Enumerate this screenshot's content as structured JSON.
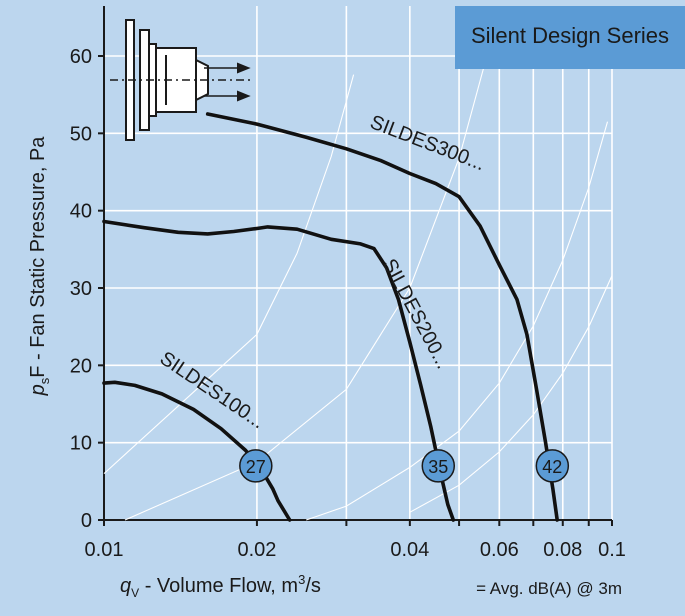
{
  "badge": "Silent Design Series",
  "chart_data": {
    "type": "line",
    "x_scale": "log",
    "xlim": [
      0.01,
      0.1
    ],
    "ylim": [
      0,
      60
    ],
    "x_ticks": [
      {
        "value": 0.01,
        "label": "0.01"
      },
      {
        "value": 0.02,
        "label": "0.02"
      },
      {
        "value": 0.04,
        "label": "0.04"
      },
      {
        "value": 0.06,
        "label": "0.06"
      },
      {
        "value": 0.08,
        "label": "0.08"
      },
      {
        "value": 0.1,
        "label": "0.1"
      }
    ],
    "x_gridlines": [
      0.01,
      0.02,
      0.03,
      0.04,
      0.05,
      0.06,
      0.07,
      0.08,
      0.09,
      0.1
    ],
    "y_ticks": [
      0,
      10,
      20,
      30,
      40,
      50,
      60
    ],
    "grid": true,
    "xlabel": {
      "symbol": "q",
      "subscript": "V",
      "rest": " - Volume Flow, m",
      "sup": "3",
      "tail": "/s"
    },
    "ylabel": {
      "symbol": "p",
      "subscript": "s",
      "rest": "F - Fan Static Pressure, Pa"
    },
    "series": [
      {
        "name": "SILDES100...",
        "points": [
          [
            0.01,
            17.7
          ],
          [
            0.0105,
            17.8
          ],
          [
            0.0115,
            17.4
          ],
          [
            0.013,
            16.3
          ],
          [
            0.015,
            14.3
          ],
          [
            0.017,
            11.8
          ],
          [
            0.019,
            9.0
          ],
          [
            0.0205,
            6.3
          ],
          [
            0.0215,
            4.0
          ],
          [
            0.022,
            2.5
          ],
          [
            0.0232,
            0
          ]
        ],
        "marker": {
          "x": 0.0199,
          "y": 7,
          "label": "27"
        },
        "label_anchor": {
          "x": 0.0128,
          "y": 20.5,
          "angle": 34
        }
      },
      {
        "name": "SILDES200...",
        "points": [
          [
            0.01,
            38.6
          ],
          [
            0.012,
            37.8
          ],
          [
            0.014,
            37.2
          ],
          [
            0.016,
            37.0
          ],
          [
            0.018,
            37.3
          ],
          [
            0.02,
            37.7
          ],
          [
            0.021,
            37.9
          ],
          [
            0.024,
            37.6
          ],
          [
            0.028,
            36.3
          ],
          [
            0.032,
            35.7
          ],
          [
            0.034,
            35.1
          ],
          [
            0.036,
            32.6
          ],
          [
            0.038,
            28.5
          ],
          [
            0.04,
            23.0
          ],
          [
            0.042,
            17.5
          ],
          [
            0.044,
            12.0
          ],
          [
            0.046,
            6.0
          ],
          [
            0.0475,
            2.0
          ],
          [
            0.0487,
            0
          ]
        ],
        "marker": {
          "x": 0.0455,
          "y": 7,
          "label": "35"
        },
        "label_anchor": {
          "x": 0.0353,
          "y": 33.2,
          "angle": 62
        }
      },
      {
        "name": "SILDES300...",
        "points": [
          [
            0.016,
            52.5
          ],
          [
            0.02,
            51.2
          ],
          [
            0.025,
            49.5
          ],
          [
            0.03,
            48.0
          ],
          [
            0.035,
            46.5
          ],
          [
            0.04,
            44.8
          ],
          [
            0.045,
            43.5
          ],
          [
            0.05,
            41.8
          ],
          [
            0.055,
            38.0
          ],
          [
            0.06,
            33.0
          ],
          [
            0.065,
            28.5
          ],
          [
            0.068,
            24.0
          ],
          [
            0.071,
            17.0
          ],
          [
            0.074,
            10.0
          ],
          [
            0.0765,
            4.0
          ],
          [
            0.078,
            0
          ]
        ],
        "marker": {
          "x": 0.0763,
          "y": 7,
          "label": "42"
        },
        "label_anchor": {
          "x": 0.0332,
          "y": 50.8,
          "angle": 21
        }
      }
    ],
    "system_curves": [
      [
        [
          0.01,
          6
        ],
        [
          0.02,
          24
        ],
        [
          0.024,
          34.5
        ],
        [
          0.028,
          47
        ],
        [
          0.031,
          57.6
        ]
      ],
      [
        [
          0.011,
          0
        ],
        [
          0.02,
          7.5
        ],
        [
          0.03,
          16.9
        ],
        [
          0.04,
          30
        ],
        [
          0.05,
          46.8
        ],
        [
          0.056,
          58.7
        ]
      ],
      [
        [
          0.025,
          0
        ],
        [
          0.03,
          1.8
        ],
        [
          0.04,
          6.8
        ],
        [
          0.05,
          11.5
        ],
        [
          0.06,
          17.7
        ],
        [
          0.07,
          25.1
        ],
        [
          0.08,
          33.6
        ],
        [
          0.09,
          43
        ],
        [
          0.098,
          51.5
        ]
      ],
      [
        [
          0.04,
          1
        ],
        [
          0.05,
          4.5
        ],
        [
          0.06,
          8.8
        ],
        [
          0.07,
          13.6
        ],
        [
          0.08,
          19
        ],
        [
          0.09,
          25
        ],
        [
          0.1,
          31.6
        ]
      ]
    ],
    "legend": {
      "text": "= Avg. dB(A) @ 3m",
      "position": "bottom-right"
    }
  }
}
